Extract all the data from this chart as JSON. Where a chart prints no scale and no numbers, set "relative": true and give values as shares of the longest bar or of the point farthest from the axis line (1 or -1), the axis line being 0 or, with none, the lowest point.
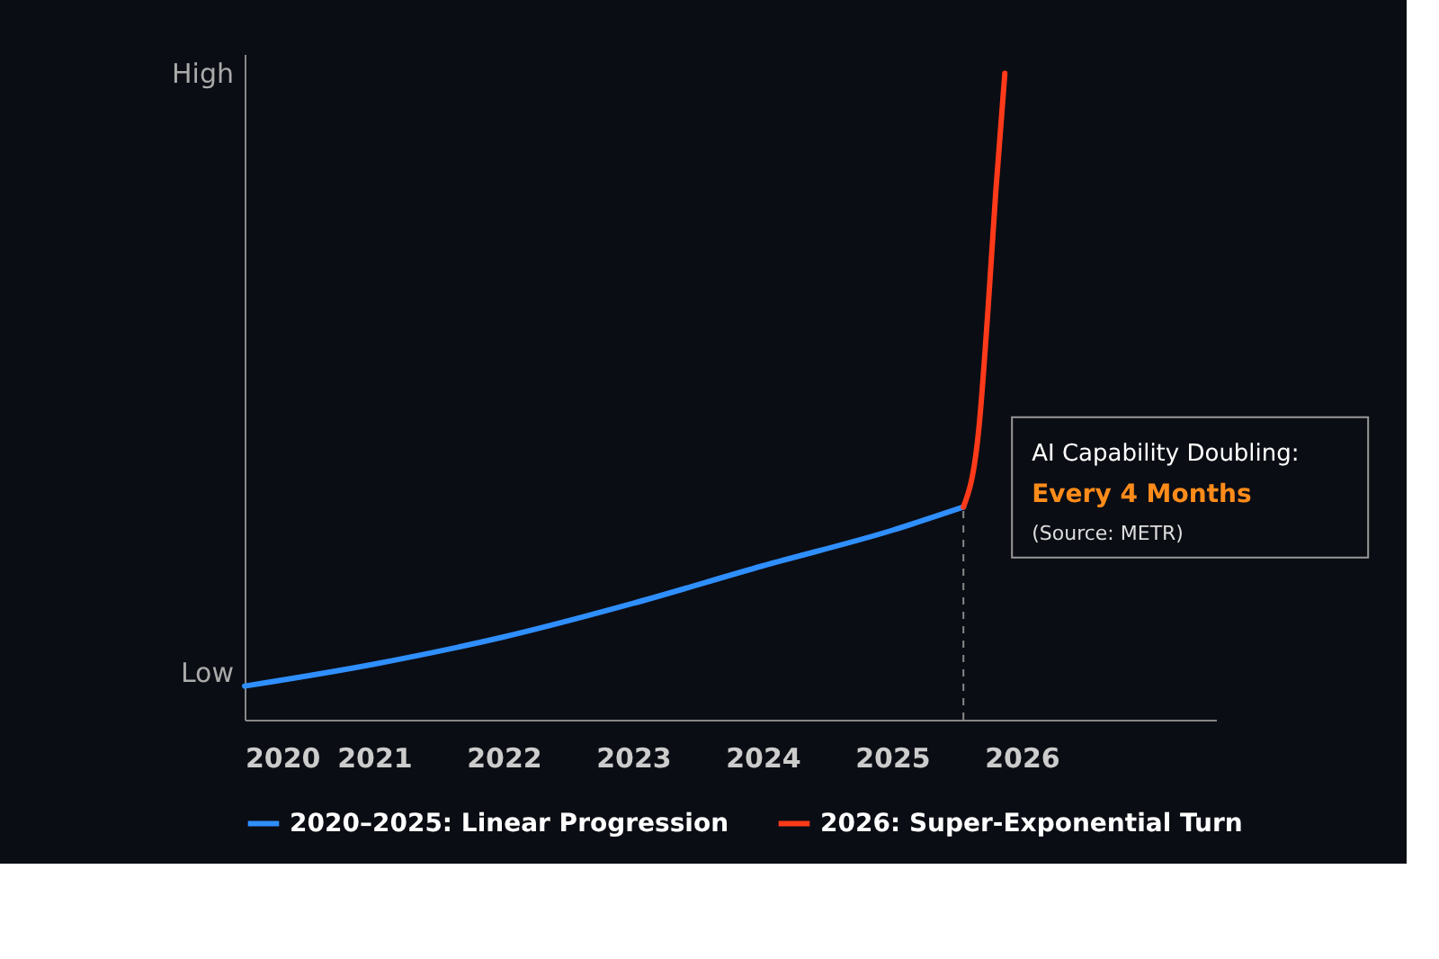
{
  "chart_data": {
    "type": "line",
    "relative": true,
    "xlim": [
      2020,
      2027.5
    ],
    "xticks": [
      2020,
      2021,
      2022,
      2023,
      2024,
      2025,
      2026
    ],
    "series": [
      {
        "name": "2020–2025: Linear Progression",
        "color": "#2f8fff",
        "x": [
          2020,
          2021,
          2022,
          2023,
          2024,
          2025,
          2025.55
        ],
        "values": [
          0.052,
          0.086,
          0.128,
          0.18,
          0.238,
          0.293,
          0.329
        ]
      },
      {
        "name": "2026: Super-Exponential Turn",
        "color": "#ff3a1a",
        "x": [
          2025.55,
          2025.67,
          2025.74,
          2025.8,
          2025.87
        ],
        "values": [
          0.329,
          0.452,
          0.635,
          0.817,
          1
        ]
      }
    ],
    "annotations": [
      "High",
      "Low",
      "AI Capability Doubling:",
      "Every 4 Months",
      "(Source: METR)"
    ],
    "ref_lines": [
      {
        "axis": "x",
        "value": 2025.55,
        "label": null,
        "color": "#888888",
        "line_style": "dashed"
      }
    ],
    "grid": false,
    "legend": "bottom"
  }
}
